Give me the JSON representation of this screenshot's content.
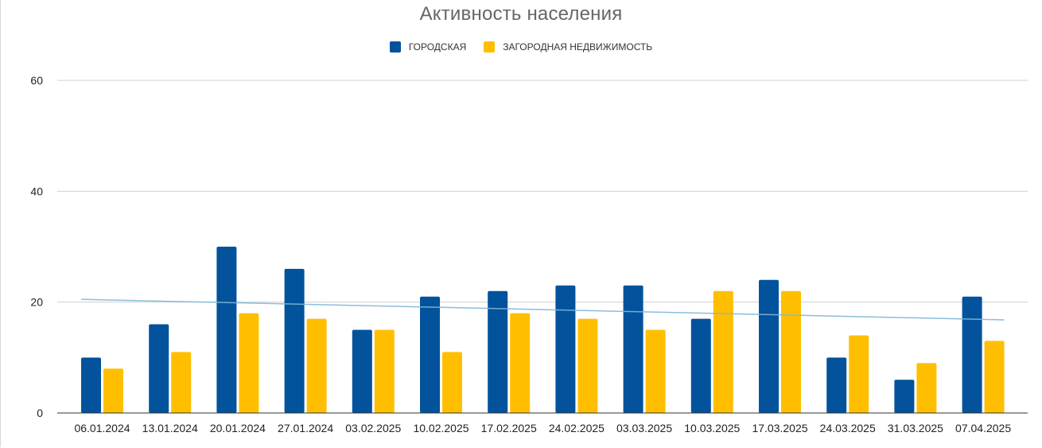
{
  "chart_data": {
    "type": "bar",
    "title": "Активность населения",
    "categories": [
      "06.01.2024",
      "13.01.2024",
      "20.01.2024",
      "27.01.2024",
      "03.02.2025",
      "10.02.2025",
      "17.02.2025",
      "24.02.2025",
      "03.03.2025",
      "10.03.2025",
      "17.03.2025",
      "24.03.2025",
      "31.03.2025",
      "07.04.2025"
    ],
    "series": [
      {
        "name": "ГОРОДСКАЯ",
        "color": "#02529c",
        "values": [
          10,
          16,
          30,
          26,
          15,
          21,
          22,
          23,
          23,
          17,
          24,
          10,
          6,
          21
        ]
      },
      {
        "name": "ЗАГОРОДНАЯ НЕДВИЖИМОСТЬ",
        "color": "#ffbf00",
        "values": [
          8,
          11,
          18,
          17,
          15,
          11,
          18,
          17,
          15,
          22,
          22,
          14,
          9,
          13
        ]
      }
    ],
    "trendline": {
      "color": "#7fb8d8",
      "start": 20.5,
      "end": 16.8
    },
    "yticks": [
      "0",
      "20",
      "40",
      "60"
    ],
    "ylim": [
      0,
      60
    ],
    "grid": true,
    "legend_position": "top-center"
  }
}
